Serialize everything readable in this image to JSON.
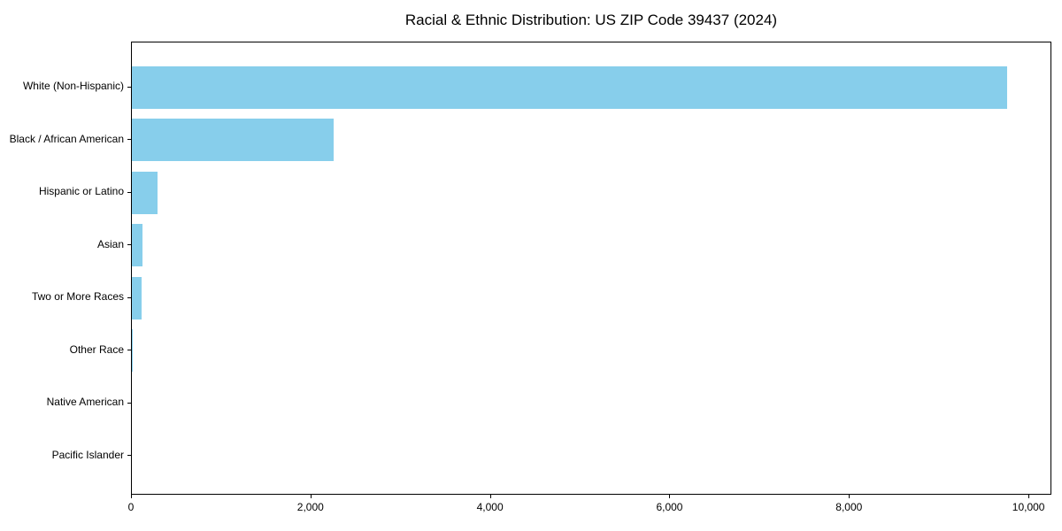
{
  "chart_data": {
    "type": "bar",
    "orientation": "horizontal",
    "title": "Racial & Ethnic Distribution: US ZIP Code 39437 (2024)",
    "xlabel": "",
    "ylabel": "",
    "categories": [
      "White (Non-Hispanic)",
      "Black / African American",
      "Hispanic or Latino",
      "Asian",
      "Two or More Races",
      "Other Race",
      "Native American",
      "Pacific Islander"
    ],
    "values": [
      9750,
      2250,
      285,
      120,
      110,
      12,
      0,
      0
    ],
    "xlim": [
      0,
      10255
    ],
    "x_ticks": [
      0,
      2000,
      4000,
      6000,
      8000,
      10000
    ],
    "x_tick_labels": [
      "0",
      "2,000",
      "4,000",
      "6,000",
      "8,000",
      "10,000"
    ],
    "bar_color": "#87CEEB",
    "spine_color": "#000000",
    "text_color": "#000000",
    "background_color": "#ffffff",
    "grid": false,
    "legend": null
  }
}
